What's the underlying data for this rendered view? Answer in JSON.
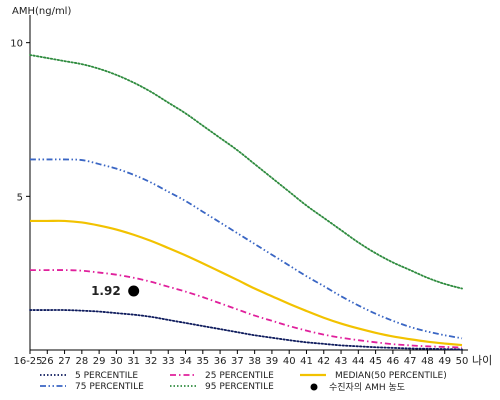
{
  "chart_data": {
    "type": "line",
    "title": "",
    "ylabel": "AMH(ng/ml)",
    "xlabel": "나이",
    "categories": [
      "16-25",
      "26",
      "27",
      "28",
      "29",
      "30",
      "31",
      "32",
      "33",
      "34",
      "35",
      "36",
      "37",
      "38",
      "39",
      "40",
      "41",
      "42",
      "43",
      "44",
      "45",
      "46",
      "47",
      "48",
      "49",
      "50"
    ],
    "y_ticks": [
      5,
      10
    ],
    "ylim": [
      0,
      10.9
    ],
    "grid": false,
    "legend_position": "bottom",
    "series": [
      {
        "name": "5 PERCENTILE",
        "color": "#0d1a5c",
        "style": "dotted",
        "values": [
          1.3,
          1.3,
          1.3,
          1.28,
          1.25,
          1.2,
          1.15,
          1.08,
          0.98,
          0.88,
          0.78,
          0.68,
          0.58,
          0.48,
          0.4,
          0.32,
          0.25,
          0.2,
          0.15,
          0.12,
          0.09,
          0.07,
          0.05,
          0.04,
          0.03,
          0.02
        ]
      },
      {
        "name": "75 PERCENTILE",
        "color": "#3a66c4",
        "style": "dashdotdot",
        "values": [
          6.2,
          6.2,
          6.2,
          6.18,
          6.05,
          5.9,
          5.7,
          5.45,
          5.15,
          4.85,
          4.5,
          4.15,
          3.8,
          3.45,
          3.1,
          2.75,
          2.4,
          2.08,
          1.75,
          1.45,
          1.18,
          0.95,
          0.75,
          0.6,
          0.48,
          0.38
        ]
      },
      {
        "name": "25 PERCENTILE",
        "color": "#e0209c",
        "style": "dashdot",
        "values": [
          2.6,
          2.6,
          2.6,
          2.58,
          2.52,
          2.45,
          2.35,
          2.22,
          2.06,
          1.9,
          1.72,
          1.52,
          1.32,
          1.12,
          0.95,
          0.78,
          0.63,
          0.5,
          0.4,
          0.32,
          0.25,
          0.19,
          0.15,
          0.12,
          0.1,
          0.08
        ]
      },
      {
        "name": "95 PERCENTILE",
        "color": "#2e8b3e",
        "style": "dotted",
        "values": [
          9.6,
          9.5,
          9.4,
          9.3,
          9.15,
          8.95,
          8.7,
          8.4,
          8.05,
          7.7,
          7.3,
          6.9,
          6.5,
          6.05,
          5.6,
          5.15,
          4.7,
          4.3,
          3.9,
          3.5,
          3.15,
          2.85,
          2.6,
          2.35,
          2.15,
          2.0
        ]
      },
      {
        "name": "MEDIAN(50 PERCENTILE)",
        "color": "#f2c200",
        "style": "solid",
        "values": [
          4.2,
          4.2,
          4.2,
          4.15,
          4.05,
          3.92,
          3.75,
          3.55,
          3.32,
          3.08,
          2.82,
          2.55,
          2.28,
          2.0,
          1.75,
          1.5,
          1.27,
          1.05,
          0.86,
          0.7,
          0.56,
          0.44,
          0.35,
          0.27,
          0.21,
          0.16
        ]
      }
    ],
    "marker": {
      "name": "수진자의 AMH 농도",
      "category": "31",
      "value": 1.92,
      "label": "1.92",
      "color": "#000000"
    }
  }
}
